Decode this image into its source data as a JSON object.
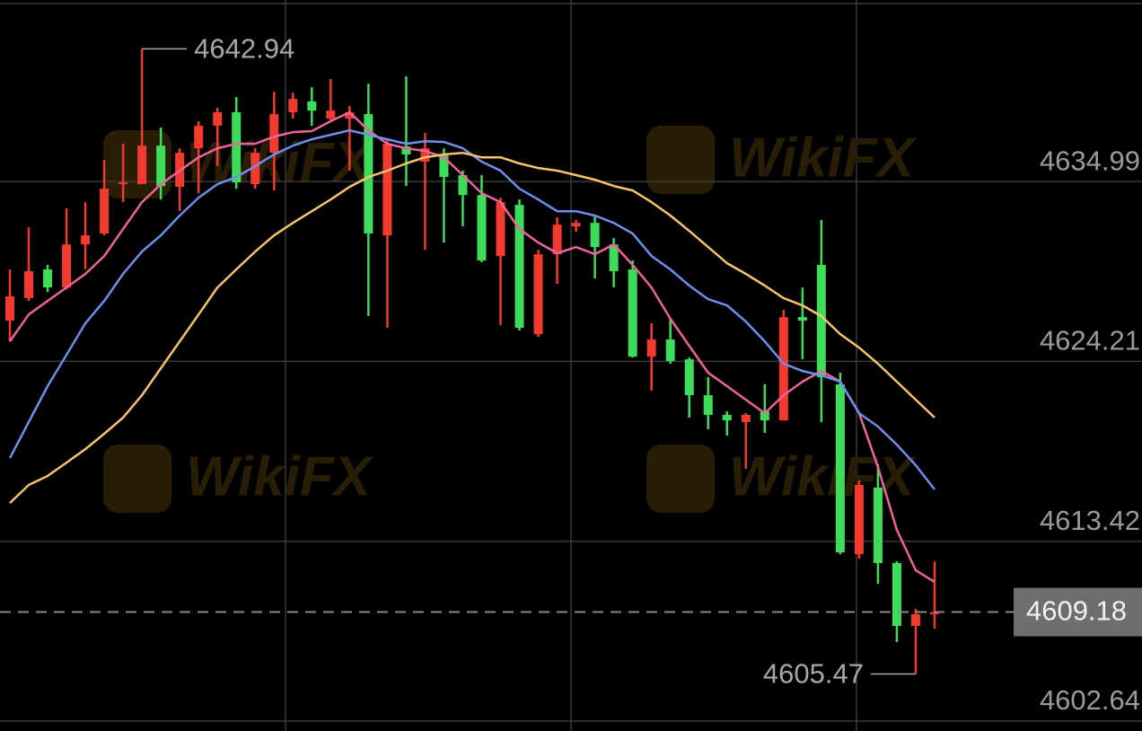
{
  "chart_data": {
    "type": "candlestick",
    "watermark": "WikiFX",
    "ylim": [
      4602.05,
      4645.87
    ],
    "yticks": [
      4634.99,
      4624.21,
      4613.42,
      4602.64
    ],
    "grid": true,
    "up_color": "#f23a2e",
    "down_color": "#3ddc5a",
    "ohlc": {
      "open": [
        4626.65,
        4628.0,
        4629.72,
        4628.64,
        4631.22,
        4631.87,
        4634.83,
        4634.83,
        4637.14,
        4634.67,
        4636.98,
        4638.33,
        4639.14,
        4634.83,
        4636.71,
        4639.14,
        4639.79,
        4638.76,
        4638.76,
        4639.03,
        4631.76,
        4637.09,
        4636.18,
        4636.55,
        4635.37,
        4634.18,
        4630.52,
        4633.59,
        4625.84,
        4630.63,
        4632.3,
        4632.51,
        4631.22,
        4629.72,
        4624.49,
        4625.52,
        4624.33,
        4622.18,
        4621.0,
        4620.57,
        4621.21,
        4620.67,
        4626.86,
        4629.99,
        4622.83,
        4612.65,
        4616.64,
        4612.12,
        4608.35,
        4609.05
      ],
      "high": [
        4629.72,
        4632.25,
        4629.99,
        4633.38,
        4633.75,
        4636.28,
        4637.25,
        4642.94,
        4638.22,
        4636.98,
        4638.6,
        4639.4,
        4640.05,
        4636.98,
        4640.37,
        4640.32,
        4640.64,
        4641.13,
        4639.51,
        4640.86,
        4637.52,
        4641.29,
        4637.9,
        4636.98,
        4635.64,
        4635.37,
        4634.02,
        4633.91,
        4630.9,
        4632.84,
        4632.68,
        4632.95,
        4631.6,
        4630.26,
        4626.49,
        4626.76,
        4624.44,
        4623.26,
        4621.21,
        4621.1,
        4622.83,
        4627.29,
        4628.64,
        4632.68,
        4623.53,
        4617.07,
        4618.04,
        4612.22,
        4609.37,
        4612.22
      ],
      "low": [
        4625.41,
        4627.83,
        4628.37,
        4628.53,
        4629.72,
        4631.76,
        4633.75,
        4634.83,
        4633.91,
        4633.21,
        4634.29,
        4635.91,
        4634.56,
        4634.56,
        4634.45,
        4638.76,
        4638.33,
        4638.6,
        4635.64,
        4626.92,
        4626.22,
        4634.72,
        4630.9,
        4631.33,
        4632.3,
        4630.15,
        4626.38,
        4626.06,
        4625.68,
        4628.86,
        4631.98,
        4629.18,
        4628.64,
        4624.44,
        4622.45,
        4624.07,
        4620.84,
        4620.14,
        4619.76,
        4617.77,
        4619.92,
        4620.67,
        4624.33,
        4620.57,
        4612.65,
        4612.38,
        4610.88,
        4607.38,
        4605.47,
        4608.19
      ],
      "close": [
        4628.1,
        4629.61,
        4628.64,
        4631.22,
        4631.76,
        4634.56,
        4634.94,
        4637.14,
        4634.72,
        4636.71,
        4638.33,
        4639.14,
        4634.94,
        4636.71,
        4639.03,
        4639.94,
        4639.24,
        4639.24,
        4639.14,
        4631.87,
        4637.25,
        4636.61,
        4636.98,
        4635.26,
        4634.18,
        4630.26,
        4633.75,
        4626.22,
        4630.63,
        4632.41,
        4632.51,
        4631.06,
        4629.61,
        4624.49,
        4625.52,
        4624.23,
        4622.18,
        4621.0,
        4620.67,
        4621.0,
        4620.67,
        4626.86,
        4626.65,
        4623.26,
        4612.76,
        4616.8,
        4612.12,
        4608.35,
        4609.05,
        4609.18
      ]
    },
    "lines": [
      {
        "color": "#f0629a",
        "values": [
          4625.41,
          4627.02,
          4627.83,
          4628.64,
          4629.45,
          4630.52,
          4632.14,
          4633.75,
          4634.83,
          4635.64,
          4636.44,
          4636.98,
          4637.25,
          4637.25,
          4637.68,
          4637.95,
          4638.01,
          4638.6,
          4639.14,
          4638.06,
          4637.25,
          4636.98,
          4636.82,
          4636.44,
          4635.37,
          4634.29,
          4633.75,
          4632.14,
          4631.33,
          4630.69,
          4631.06,
          4630.63,
          4631.22,
          4629.99,
          4628.64,
          4626.76,
          4625.14,
          4623.53,
          4622.72,
          4621.91,
          4621.1,
          4622.18,
          4622.99,
          4623.63,
          4622.99,
          4621.1,
          4617.87,
          4614.11,
          4611.68,
          4610.98
        ]
      },
      {
        "color": "#6f8fef",
        "values": [
          4618.41,
          4620.57,
          4622.72,
          4624.6,
          4626.49,
          4627.83,
          4629.45,
          4630.79,
          4631.76,
          4632.95,
          4634.02,
          4634.83,
          4635.26,
          4635.91,
          4636.61,
          4637.14,
          4637.52,
          4637.79,
          4638.06,
          4637.79,
          4637.52,
          4637.25,
          4637.41,
          4637.36,
          4636.98,
          4636.18,
          4635.64,
          4634.56,
          4633.91,
          4633.21,
          4633.21,
          4632.95,
          4632.51,
          4631.87,
          4630.52,
          4629.72,
          4628.75,
          4627.94,
          4627.56,
          4626.59,
          4625.41,
          4624.07,
          4623.63,
          4623.37,
          4622.99,
          4621.1,
          4620.3,
          4619.22,
          4617.98,
          4616.53
        ]
      },
      {
        "color": "#f5c46b",
        "values": [
          4615.72,
          4616.8,
          4617.34,
          4618.14,
          4618.95,
          4619.87,
          4620.84,
          4622.18,
          4623.8,
          4625.41,
          4627.02,
          4628.64,
          4629.72,
          4630.79,
          4631.76,
          4632.51,
          4633.21,
          4633.91,
          4634.67,
          4635.26,
          4635.64,
          4636.07,
          4636.44,
          4636.61,
          4636.71,
          4636.44,
          4636.44,
          4636.07,
          4635.8,
          4635.64,
          4635.37,
          4635.1,
          4634.72,
          4634.45,
          4633.75,
          4632.95,
          4632.03,
          4631.06,
          4630.09,
          4629.45,
          4628.75,
          4628.0,
          4627.56,
          4626.92,
          4625.84,
          4625.03,
          4624.07,
          4622.99,
          4621.91,
          4620.84
        ]
      }
    ]
  }
}
